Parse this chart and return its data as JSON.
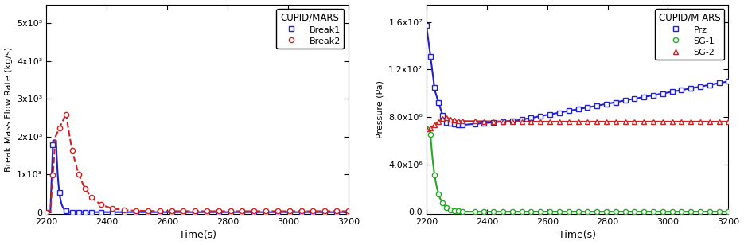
{
  "xlim": [
    2200,
    3200
  ],
  "xticks": [
    2200,
    2400,
    2600,
    2800,
    3000,
    3200
  ],
  "xlabel": "Time(s)",
  "bg_color": "#f0f0e8",
  "plot1": {
    "ylabel": "Break Mass Flow Rate (kg/s)",
    "ylim": [
      -50,
      5500
    ],
    "yticks": [
      0,
      1000,
      2000,
      3000,
      4000,
      5000
    ],
    "ytick_labels": [
      "0",
      "1x10³",
      "2x10³",
      "3x10³",
      "4x10³",
      "5x10³"
    ],
    "legend_title": "CUPID/MARS",
    "legend_loc": "upper right",
    "series": [
      {
        "label": "Break1",
        "color": "#2222cc",
        "linestyle": "-",
        "marker": "s",
        "markerfacecolor": "white",
        "markeredgecolor": "#2222cc",
        "linewidth": 1.5
      },
      {
        "label": "Break2",
        "color": "#cc2222",
        "linestyle": "--",
        "marker": "o",
        "markerfacecolor": "white",
        "markeredgecolor": "#cc2222",
        "linewidth": 1.5
      }
    ]
  },
  "plot2": {
    "ylabel": "Pressure (Pa)",
    "ylim": [
      -200000.0,
      17500000.0
    ],
    "yticks": [
      0,
      4000000,
      8000000,
      12000000,
      16000000
    ],
    "ytick_labels": [
      "0.0",
      "4.0x10⁶",
      "8.0x10⁶",
      "1.2x10⁷",
      "1.6x10⁷"
    ],
    "legend_title": "CUPID/M ARS",
    "legend_loc": "upper right",
    "series": [
      {
        "label": "Prz",
        "color": "#2222cc",
        "linestyle": "-",
        "marker": "s",
        "markerfacecolor": "white",
        "markeredgecolor": "#2222cc",
        "linewidth": 1.5
      },
      {
        "label": "SG-1",
        "color": "#22aa22",
        "linestyle": "-",
        "marker": "o",
        "markerfacecolor": "white",
        "markeredgecolor": "#22aa22",
        "linewidth": 1.5
      },
      {
        "label": "SG-2",
        "color": "#cc2222",
        "linestyle": "-",
        "marker": "^",
        "markerfacecolor": "white",
        "markeredgecolor": "#cc2222",
        "linewidth": 1.5
      }
    ]
  }
}
